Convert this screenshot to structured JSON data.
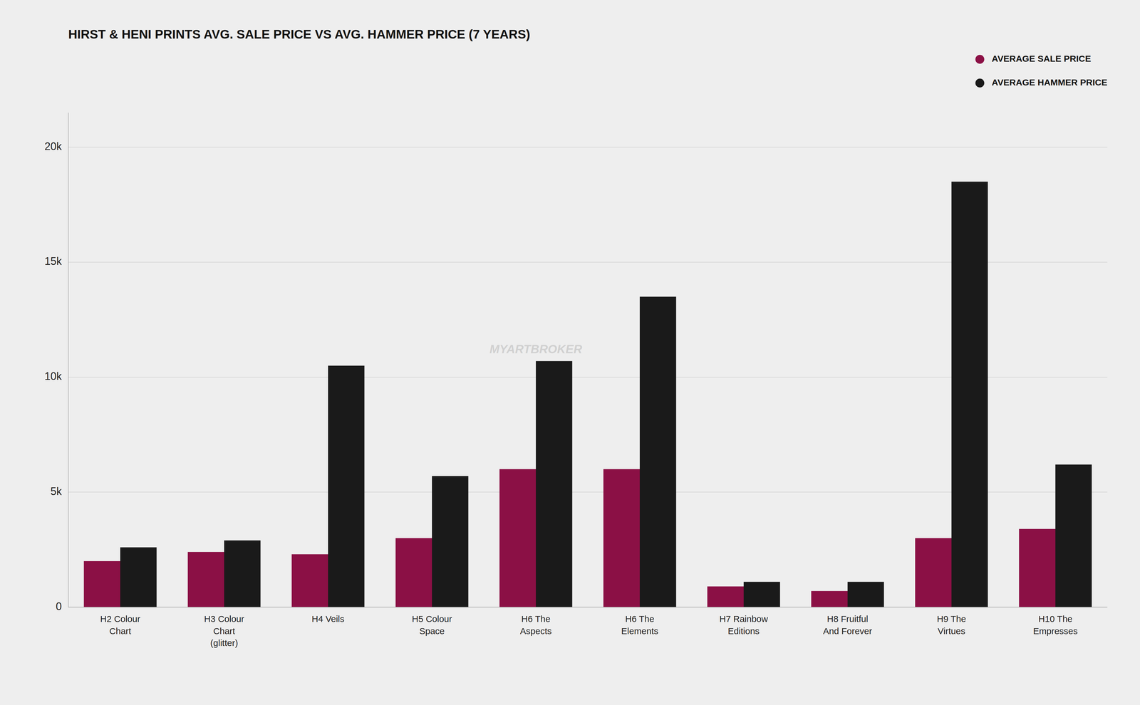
{
  "chart_data": {
    "type": "bar",
    "title": "HIRST & HENI PRINTS AVG. SALE PRICE VS AVG. HAMMER PRICE (7 YEARS)",
    "categories": [
      "H2 Colour\nChart",
      "H3 Colour\nChart\n(glitter)",
      "H4 Veils",
      "H5 Colour\nSpace",
      "H6 The\nAspects",
      "H6 The\nElements",
      "H7 Rainbow\nEditions",
      "H8 Fruitful\nAnd Forever",
      "H9 The\nVirtues",
      "H10 The\nEmpresses"
    ],
    "series": [
      {
        "name": "AVERAGE SALE PRICE",
        "color": "#8B1045",
        "values": [
          2000,
          2400,
          2300,
          3000,
          6000,
          6000,
          900,
          700,
          3000,
          3400
        ]
      },
      {
        "name": "AVERAGE HAMMER PRICE",
        "color": "#1a1a1a",
        "values": [
          2600,
          2900,
          10500,
          5700,
          10700,
          13500,
          1100,
          1100,
          18500,
          6200
        ]
      }
    ],
    "ylim": [
      0,
      21500
    ],
    "yticks": [
      0,
      {
        "value": 5000,
        "label": "5k"
      },
      {
        "value": 10000,
        "label": "10k"
      },
      {
        "value": 15000,
        "label": "15k"
      },
      {
        "value": 20000,
        "label": "20k"
      }
    ],
    "grid": true,
    "legend": "upper right",
    "annotations": [
      "MYARTBROKER"
    ]
  }
}
